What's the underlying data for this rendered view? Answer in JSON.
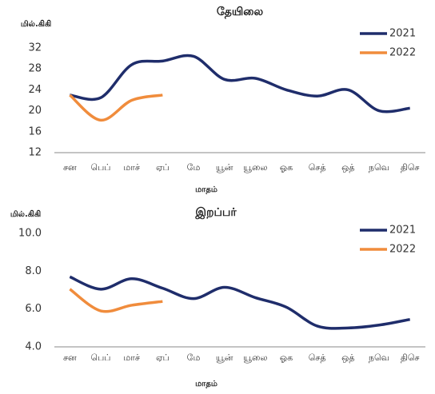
{
  "chart_data": [
    {
      "type": "line",
      "title": "தேயிலை",
      "y_label": "மில்.கிகி",
      "x_label": "மாதம்",
      "categories": [
        "சன",
        "பெப்",
        "மாச்",
        "ஏப்",
        "மே",
        "யூன்",
        "யூலை",
        "ஓக",
        "செத்",
        "ஒத்",
        "நவெ",
        "திசெ"
      ],
      "series": [
        {
          "name": "2021",
          "color": "#1f2d6b",
          "values": [
            23,
            22.5,
            28.8,
            29.5,
            30.4,
            26,
            26.2,
            24,
            22.8,
            24,
            20,
            20.5
          ]
        },
        {
          "name": "2022",
          "color": "#f08c3c",
          "values": [
            23,
            18.2,
            22,
            23,
            null,
            null,
            null,
            null,
            null,
            null,
            null,
            null
          ]
        }
      ],
      "ylim": [
        12,
        32
      ],
      "yticks": [
        12,
        16,
        20,
        24,
        28,
        32
      ],
      "grid": false,
      "legend": "upper right"
    },
    {
      "type": "line",
      "title": "இறப்பர்",
      "y_label": "மில்.கிகி",
      "x_label": "மாதம்",
      "categories": [
        "சன",
        "பெப்",
        "மாச்",
        "ஏப்",
        "மே",
        "யூன்",
        "யூலை",
        "ஓக",
        "செத்",
        "ஒத்",
        "நவெ",
        "திசெ"
      ],
      "series": [
        {
          "name": "2021",
          "color": "#1f2d6b",
          "values": [
            7.7,
            7.05,
            7.6,
            7.1,
            6.55,
            7.15,
            6.6,
            6.1,
            5.1,
            5.0,
            5.15,
            5.45
          ]
        },
        {
          "name": "2022",
          "color": "#f08c3c",
          "values": [
            7.05,
            5.9,
            6.2,
            6.4,
            null,
            null,
            null,
            null,
            null,
            null,
            null,
            null
          ]
        }
      ],
      "ylim": [
        4,
        10
      ],
      "yticks": [
        {
          "value": 4,
          "label": "4.0"
        },
        {
          "value": 6,
          "label": "6.0"
        },
        {
          "value": 8,
          "label": "8.0"
        },
        {
          "value": 10,
          "label": "10.0"
        }
      ],
      "grid": false,
      "legend": "upper right"
    }
  ]
}
